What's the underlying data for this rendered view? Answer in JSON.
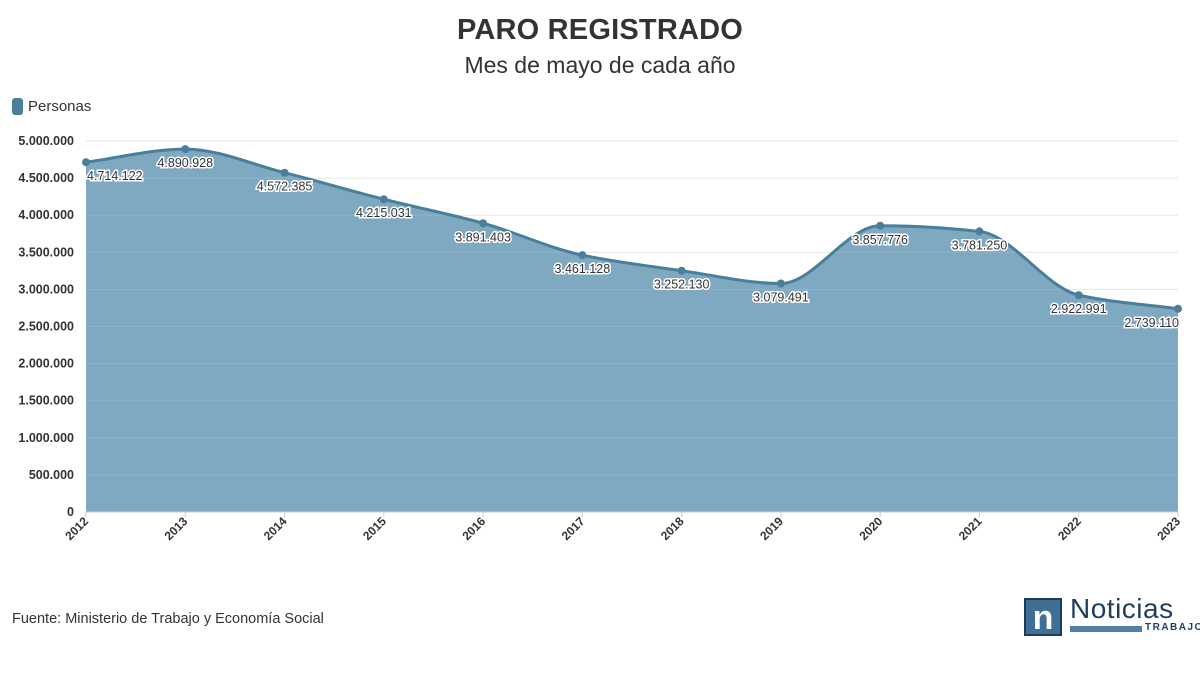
{
  "chart_data": {
    "type": "area",
    "title": "PARO REGISTRADO",
    "subtitle": "Mes de mayo de cada año",
    "x": [
      "2012",
      "2013",
      "2014",
      "2015",
      "2016",
      "2017",
      "2018",
      "2019",
      "2020",
      "2021",
      "2022",
      "2023"
    ],
    "series": [
      {
        "name": "Personas",
        "values": [
          4714122,
          4890928,
          4572385,
          4215031,
          3891403,
          3461128,
          3252130,
          3079491,
          3857776,
          3781250,
          2922991,
          2739110
        ],
        "labels": [
          "4.714.122",
          "4.890.928",
          "4.572.385",
          "4.215.031",
          "3.891.403",
          "3.461.128",
          "3.252.130",
          "3.079.491",
          "3.857.776",
          "3.781.250",
          "2.922.991",
          "2.739.110"
        ]
      }
    ],
    "ylim": [
      0,
      5000000
    ],
    "yticks": [
      "0",
      "500.000",
      "1.000.000",
      "1.500.000",
      "2.000.000",
      "2.500.000",
      "3.000.000",
      "3.500.000",
      "4.000.000",
      "4.500.000",
      "5.000.000"
    ],
    "grid": true,
    "legend": "top-left",
    "colors": {
      "fill": "#7fa9c1",
      "line": "#4a7f9c",
      "marker": "#4a7f9c",
      "legend": "#4a7f9c"
    }
  },
  "source": "Fuente: Ministerio de Trabajo y Economía Social",
  "logo": {
    "word": "Noticias",
    "sub": "TRABAJO",
    "letter": "n"
  }
}
